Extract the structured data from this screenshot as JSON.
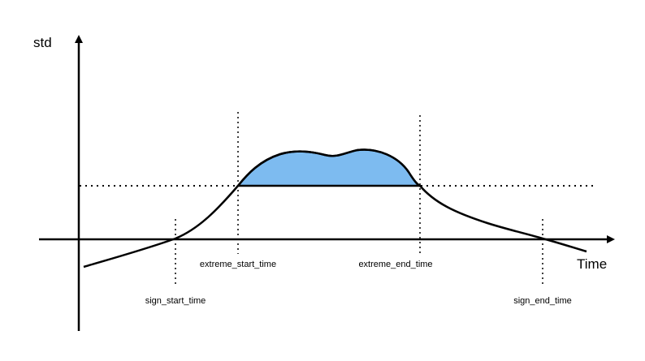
{
  "axes": {
    "y_label": "std",
    "x_label": "Time"
  },
  "markers": {
    "extreme_start": "extreme_start_time",
    "extreme_end": "extreme_end_time",
    "sign_start": "sign_start_time",
    "sign_end": "sign_end_time"
  },
  "colors": {
    "curve": "#000000",
    "fill": "#7dbbf0",
    "threshold": "#000000"
  }
}
